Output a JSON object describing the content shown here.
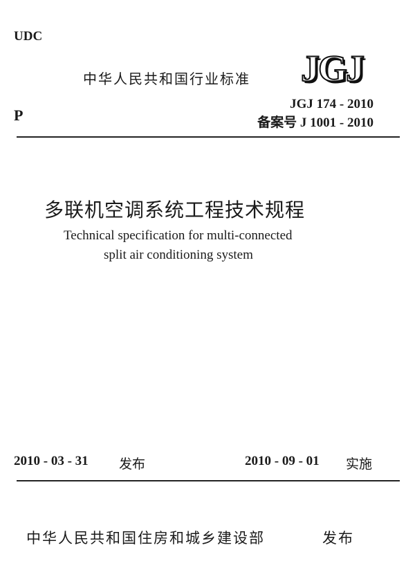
{
  "header": {
    "udc": "UDC",
    "category": "P",
    "issuer_type": "中华人民共和国行业标准",
    "logo": "JGJ",
    "standard_number": "JGJ 174 - 2010",
    "record_number": "备案号 J 1001 - 2010"
  },
  "title": {
    "chinese": "多联机空调系统工程技术规程",
    "english_line1": "Technical specification for multi-connected",
    "english_line2": "split air conditioning system"
  },
  "dates": {
    "issue_date": "2010 - 03 - 31",
    "issue_label": "发布",
    "effective_date": "2010 - 09 - 01",
    "effective_label": "实施"
  },
  "footer": {
    "publisher": "中华人民共和国住房和城乡建设部",
    "publish_label": "发布"
  }
}
